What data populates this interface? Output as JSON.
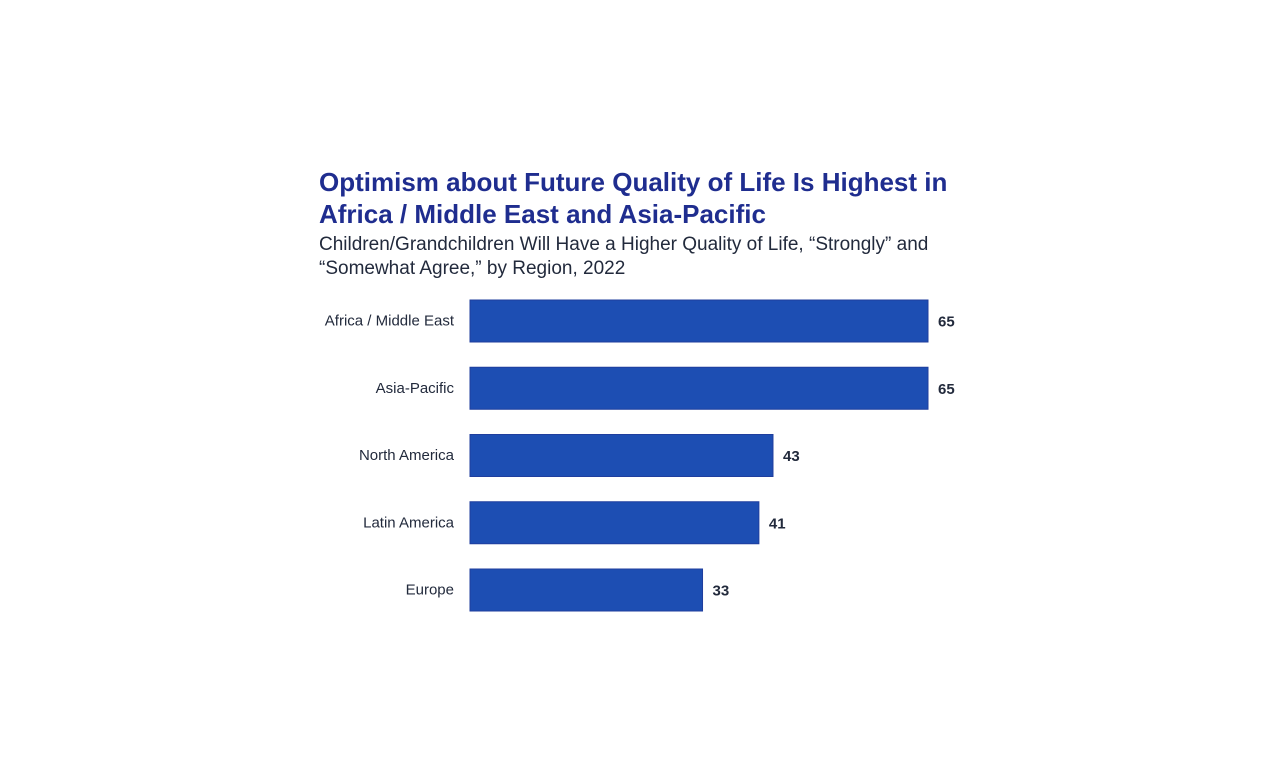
{
  "chart_data": {
    "type": "bar",
    "orientation": "horizontal",
    "title": "Optimism about Future Quality of Life Is Highest in Africa / Middle East and Asia-Pacific",
    "subtitle": "Children/Grandchildren Will Have a Higher Quality of Life, “Strongly” and “Somewhat Agree,” by Region, 2022",
    "categories": [
      "Africa / Middle East",
      "Asia-Pacific",
      "North America",
      "Latin America",
      "Europe"
    ],
    "values": [
      65,
      65,
      43,
      41,
      33
    ],
    "xlim": [
      0,
      65
    ],
    "grid": false,
    "legend": "none",
    "bar_color": "#1d4eb3",
    "text_color": "#222a3c",
    "title_color": "#1f2d8f"
  }
}
